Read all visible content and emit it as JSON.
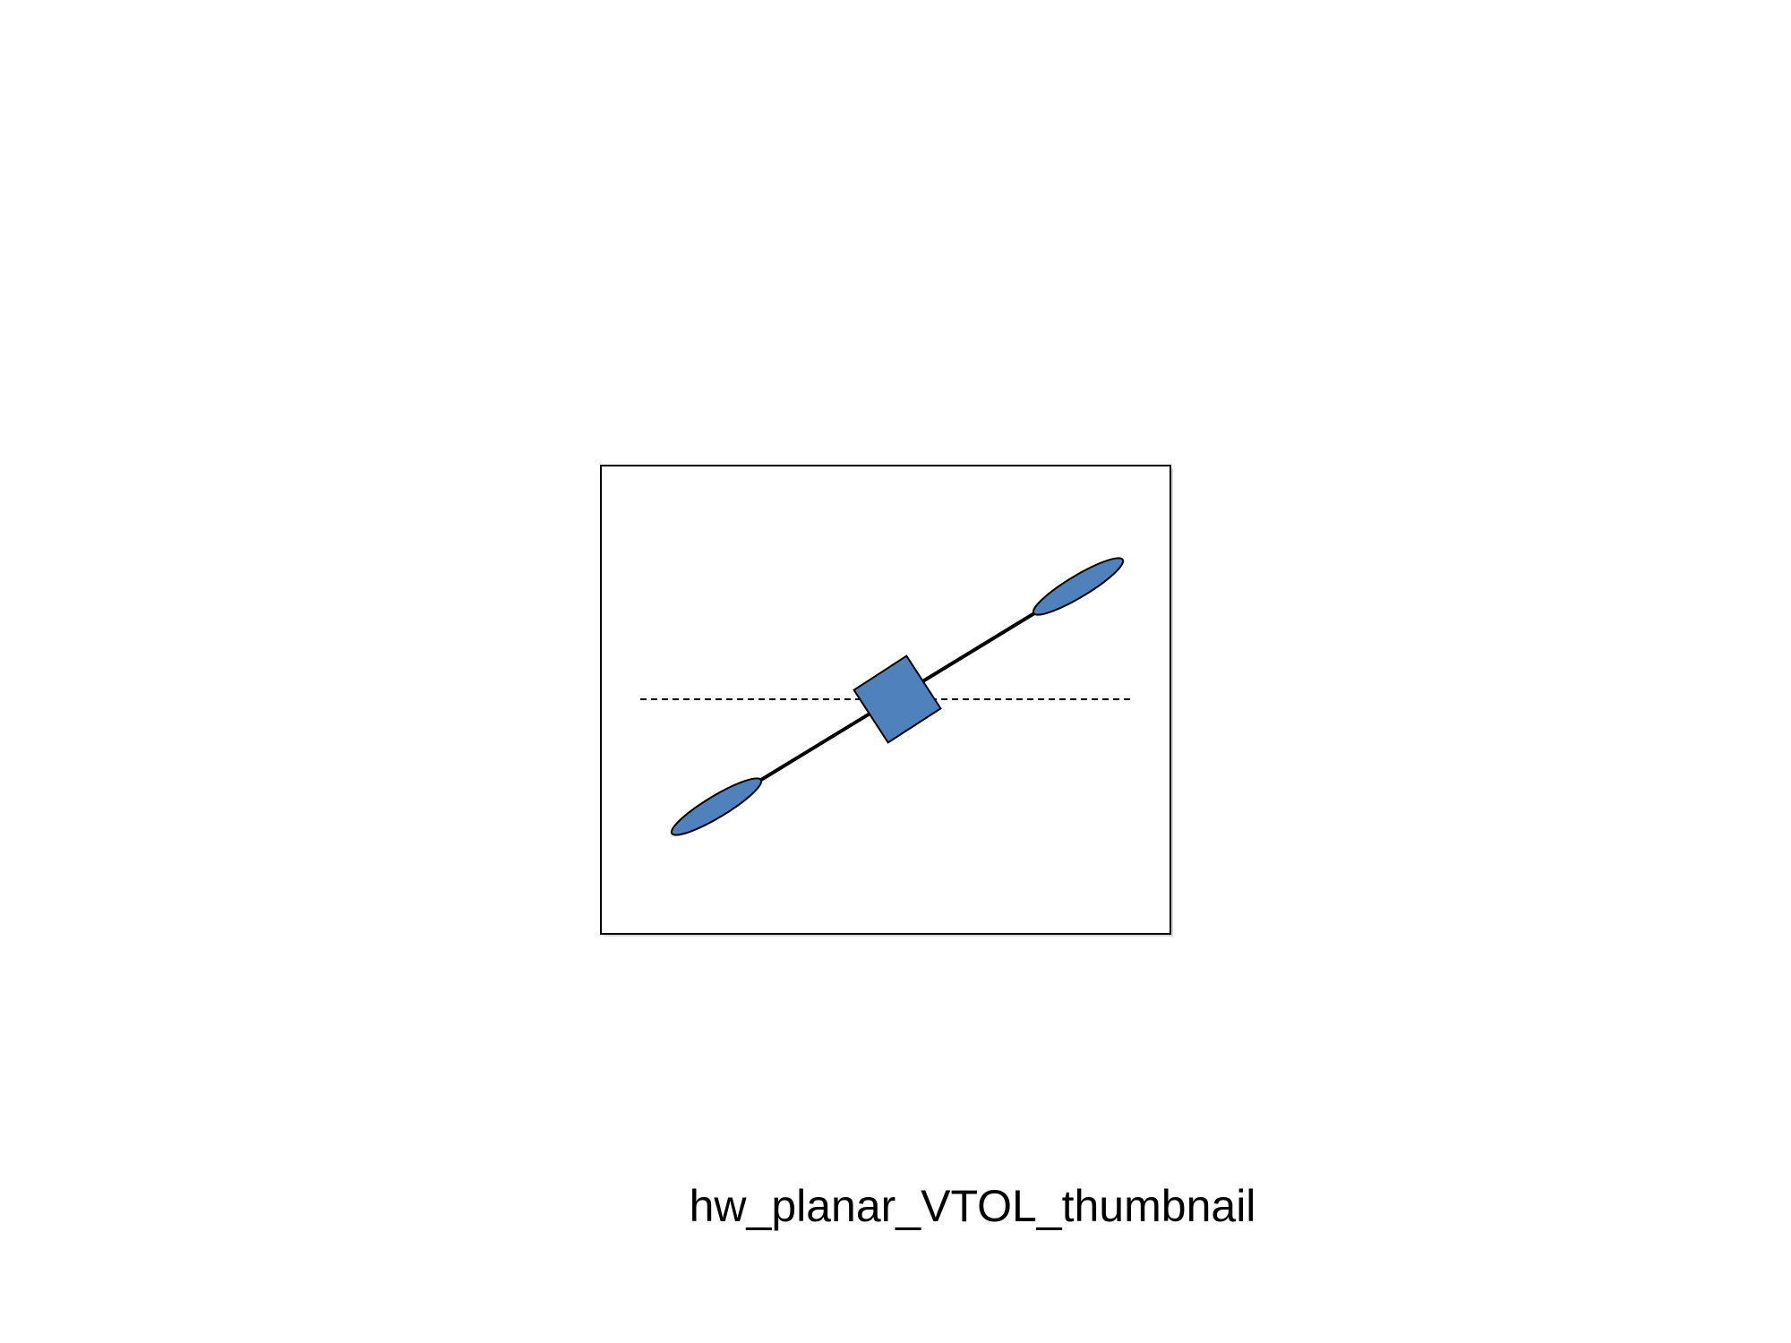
{
  "caption": "hw_planar_VTOL_thumbnail",
  "colors": {
    "background": "#ffffff",
    "frame_stroke": "#000000",
    "shape_fill": "#4f81bd",
    "shape_stroke": "#000000"
  },
  "icons": {
    "body": "square-body",
    "rotors": "ellipse-rotor"
  }
}
